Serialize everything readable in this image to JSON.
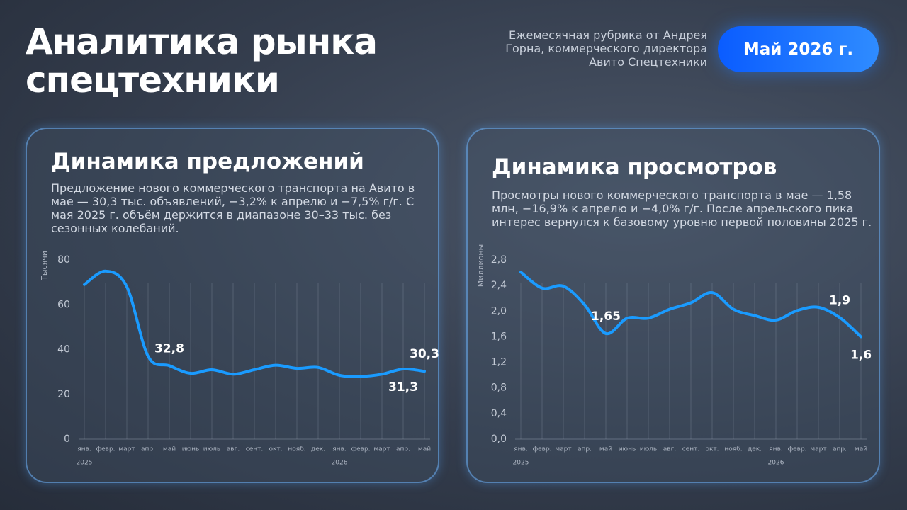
{
  "header": {
    "title": "Аналитика рынка спецтехники",
    "subtitle": "Ежемесячная рубрика от Андрея Горна, коммерческого директора Авито Спецтехники",
    "badge": "Май 2026 г."
  },
  "chart_data": [
    {
      "type": "line",
      "title": "Динамика предложений",
      "description": "Предложение нового коммерческого транспорта на Авито в мае — 30,3 тыс. объявлений, −3,2% к апрелю и −7,5% г/г. С мая 2025 г. объём держится в диапазоне 30–33 тыс. без сезонных колебаний.",
      "y_label": "Тысячи",
      "categories": [
        "янв.",
        "февр.",
        "март",
        "апр.",
        "май",
        "июнь",
        "июль",
        "авг.",
        "сент.",
        "окт.",
        "нояб.",
        "дек.",
        "янв.",
        "февр.",
        "март",
        "апр.",
        "май"
      ],
      "years": [
        "2025",
        "2026"
      ],
      "values": [
        69,
        75,
        68,
        37,
        32.8,
        29.4,
        31,
        29,
        31,
        33,
        31.6,
        32,
        28.5,
        28,
        29,
        31.3,
        30.3
      ],
      "value_labels": [
        null,
        null,
        null,
        null,
        "32,8",
        null,
        null,
        null,
        null,
        null,
        null,
        null,
        null,
        null,
        null,
        "31,3",
        "30,3"
      ],
      "color": "#1a9bff",
      "ylim": [
        0,
        80
      ],
      "yticks": [
        0,
        20,
        40,
        60,
        80
      ],
      "grid": true
    },
    {
      "type": "line",
      "title": "Динамика просмотров",
      "description": "Просмотры нового коммерческого транспорта в мае — 1,58 млн, −16,9% к апрелю и −4,0% г/г. После апрельского пика интерес вернулся к базовому уровню первой половины 2025 г.",
      "y_label": "Миллионы",
      "categories": [
        "янв.",
        "февр.",
        "март",
        "апр.",
        "май",
        "июнь",
        "июль",
        "авг.",
        "сент.",
        "окт.",
        "нояб.",
        "дек.",
        "янв.",
        "февр.",
        "март",
        "апр.",
        "май"
      ],
      "years": [
        "2025",
        "2026"
      ],
      "values": [
        2.61,
        2.36,
        2.39,
        2.1,
        1.65,
        1.89,
        1.89,
        2.03,
        2.13,
        2.29,
        2.03,
        1.93,
        1.86,
        2.01,
        2.06,
        1.9,
        1.6
      ],
      "value_labels": [
        null,
        null,
        null,
        null,
        "1,65",
        null,
        null,
        null,
        null,
        null,
        null,
        null,
        null,
        null,
        null,
        "1,9",
        "1,6"
      ],
      "color": "#1a9bff",
      "ylim": [
        0,
        2.8
      ],
      "yticks": [
        {
          "value": 0,
          "label": "0,0"
        },
        {
          "value": 0.4,
          "label": "0,4"
        },
        {
          "value": 0.8,
          "label": "0,8"
        },
        {
          "value": 1.2,
          "label": "1,2"
        },
        {
          "value": 1.6,
          "label": "1,6"
        },
        {
          "value": 2,
          "label": "2,0"
        },
        {
          "value": 2.4,
          "label": "2,4"
        },
        {
          "value": 2.8,
          "label": "2,8"
        }
      ],
      "grid": true
    }
  ]
}
